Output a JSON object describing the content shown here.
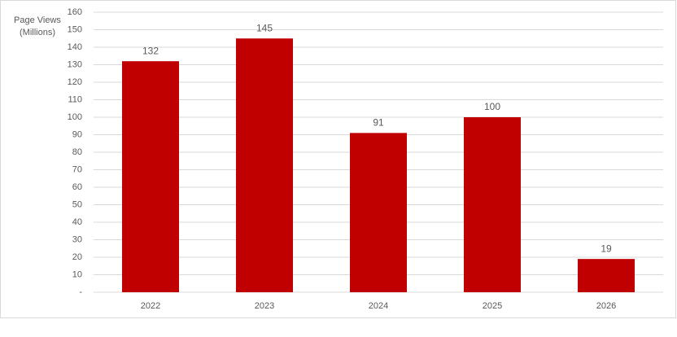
{
  "chart_data": {
    "type": "bar",
    "ylabel": [
      "Page Views",
      "(Millions)"
    ],
    "categories": [
      "2022",
      "2023",
      "2024",
      "2025",
      "2026"
    ],
    "values": [
      132,
      145,
      91,
      100,
      19
    ],
    "color": "#c00000",
    "ylim": [
      0,
      160
    ],
    "yticks": [
      {
        "value": 0,
        "label": "-"
      },
      10,
      20,
      30,
      40,
      50,
      60,
      70,
      80,
      90,
      100,
      110,
      120,
      130,
      140,
      150,
      160
    ],
    "grid": true
  }
}
